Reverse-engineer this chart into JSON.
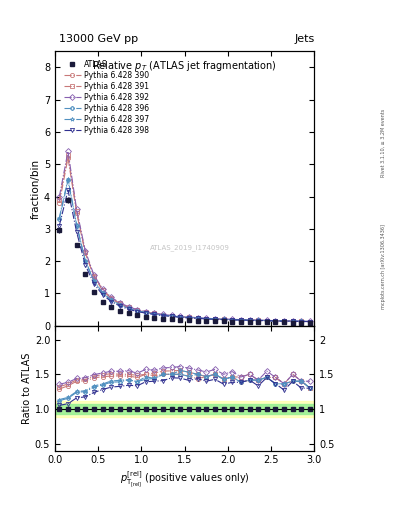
{
  "title_top": "13000 GeV pp",
  "title_right": "Jets",
  "plot_title": "Relative $p_T$ (ATLAS jet fragmentation)",
  "watermark": "ATLAS_2019_I1740909",
  "right_label_top": "Rivet 3.1.10, ≥ 3.2M events",
  "right_label_bottom": "mcplots.cern.ch [arXiv:1306.3436]",
  "ylabel_main": "fraction/bin",
  "ylabel_ratio": "Ratio to ATLAS",
  "xlabel": "$p_{\\mathrm{T_{\\mathrm{[rel]}}}}}$ (positive values only)",
  "xlim": [
    0,
    3
  ],
  "ylim_main": [
    0,
    8.5
  ],
  "ylim_ratio": [
    0.4,
    2.2
  ],
  "atlas_x": [
    0.05,
    0.15,
    0.25,
    0.35,
    0.45,
    0.55,
    0.65,
    0.75,
    0.85,
    0.95,
    1.05,
    1.15,
    1.25,
    1.35,
    1.45,
    1.55,
    1.65,
    1.75,
    1.85,
    1.95,
    2.05,
    2.15,
    2.25,
    2.35,
    2.45,
    2.55,
    2.65,
    2.75,
    2.85,
    2.95
  ],
  "atlas_y": [
    2.95,
    3.9,
    2.5,
    1.6,
    1.05,
    0.75,
    0.57,
    0.46,
    0.38,
    0.33,
    0.28,
    0.25,
    0.22,
    0.2,
    0.18,
    0.17,
    0.16,
    0.15,
    0.14,
    0.14,
    0.13,
    0.13,
    0.12,
    0.12,
    0.11,
    0.11,
    0.11,
    0.1,
    0.1,
    0.1
  ],
  "atlas_yerr": [
    0.08,
    0.1,
    0.07,
    0.05,
    0.03,
    0.02,
    0.015,
    0.012,
    0.01,
    0.008,
    0.007,
    0.006,
    0.005,
    0.005,
    0.004,
    0.004,
    0.004,
    0.003,
    0.003,
    0.003,
    0.003,
    0.003,
    0.003,
    0.003,
    0.002,
    0.002,
    0.002,
    0.002,
    0.002,
    0.002
  ],
  "pythia_x": [
    0.05,
    0.15,
    0.25,
    0.35,
    0.45,
    0.55,
    0.65,
    0.75,
    0.85,
    0.95,
    1.05,
    1.15,
    1.25,
    1.35,
    1.45,
    1.55,
    1.65,
    1.75,
    1.85,
    1.95,
    2.05,
    2.15,
    2.25,
    2.35,
    2.45,
    2.55,
    2.65,
    2.75,
    2.85,
    2.95
  ],
  "pythia390_y": [
    3.8,
    5.2,
    3.5,
    2.25,
    1.52,
    1.1,
    0.84,
    0.68,
    0.56,
    0.48,
    0.42,
    0.37,
    0.33,
    0.3,
    0.27,
    0.25,
    0.23,
    0.22,
    0.21,
    0.2,
    0.19,
    0.18,
    0.17,
    0.17,
    0.16,
    0.16,
    0.15,
    0.14,
    0.14,
    0.13
  ],
  "pythia391_y": [
    3.9,
    5.3,
    3.55,
    2.28,
    1.55,
    1.12,
    0.86,
    0.69,
    0.57,
    0.49,
    0.42,
    0.38,
    0.34,
    0.31,
    0.28,
    0.26,
    0.24,
    0.22,
    0.21,
    0.2,
    0.19,
    0.19,
    0.18,
    0.17,
    0.16,
    0.16,
    0.15,
    0.15,
    0.14,
    0.13
  ],
  "pythia392_y": [
    4.0,
    5.4,
    3.6,
    2.32,
    1.57,
    1.14,
    0.88,
    0.71,
    0.59,
    0.5,
    0.44,
    0.39,
    0.35,
    0.32,
    0.29,
    0.27,
    0.25,
    0.23,
    0.22,
    0.21,
    0.2,
    0.19,
    0.18,
    0.17,
    0.17,
    0.16,
    0.15,
    0.15,
    0.14,
    0.14
  ],
  "pythia396_y": [
    3.3,
    4.5,
    3.1,
    2.0,
    1.38,
    1.01,
    0.79,
    0.64,
    0.54,
    0.46,
    0.4,
    0.36,
    0.33,
    0.3,
    0.27,
    0.25,
    0.24,
    0.22,
    0.21,
    0.2,
    0.19,
    0.18,
    0.17,
    0.17,
    0.16,
    0.15,
    0.15,
    0.14,
    0.14,
    0.13
  ],
  "pythia397_y": [
    3.35,
    4.55,
    3.13,
    2.02,
    1.4,
    1.02,
    0.8,
    0.65,
    0.54,
    0.46,
    0.41,
    0.36,
    0.33,
    0.3,
    0.28,
    0.26,
    0.24,
    0.22,
    0.21,
    0.2,
    0.19,
    0.18,
    0.17,
    0.17,
    0.16,
    0.15,
    0.15,
    0.14,
    0.14,
    0.13
  ],
  "pythia398_y": [
    3.1,
    4.2,
    2.9,
    1.88,
    1.3,
    0.96,
    0.75,
    0.61,
    0.51,
    0.44,
    0.39,
    0.35,
    0.31,
    0.29,
    0.26,
    0.24,
    0.23,
    0.21,
    0.2,
    0.19,
    0.18,
    0.18,
    0.17,
    0.16,
    0.16,
    0.15,
    0.14,
    0.14,
    0.13,
    0.13
  ],
  "colors": {
    "390": "#c87878",
    "391": "#c87878",
    "392": "#8860b0",
    "396": "#5090c0",
    "397": "#5090c0",
    "398": "#303090"
  },
  "markers": {
    "390": "o",
    "391": "s",
    "392": "D",
    "396": "P",
    "397": "*",
    "398": "v"
  },
  "ratio_green_color": "#90ee90",
  "ratio_yellow_color": "#ffff99",
  "ratio_green_alpha": 0.8,
  "ratio_yellow_alpha": 0.6,
  "atlas_ratio_band_low": 0.93,
  "atlas_ratio_band_high": 1.07,
  "atlas_ratio_yellow_low": 0.88,
  "atlas_ratio_yellow_high": 1.12
}
